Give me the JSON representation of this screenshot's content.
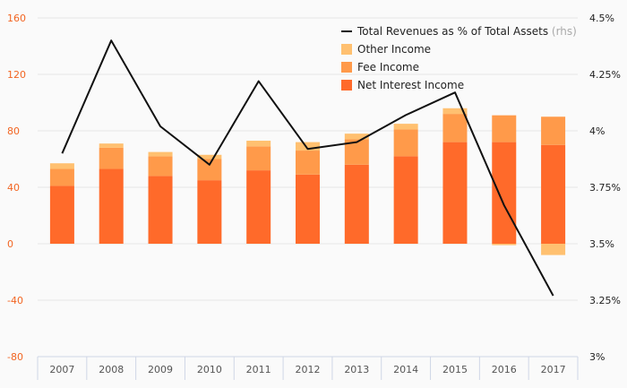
{
  "colors": {
    "net_interest": "#ff6a2a",
    "fee": "#ff9a4a",
    "other": "#ffc070",
    "line": "#111111",
    "left_axis": "#f26522",
    "grid": "#e6e6e6"
  },
  "chart_data": {
    "type": "bar",
    "stacked": true,
    "categories": [
      "2007",
      "2008",
      "2009",
      "2010",
      "2011",
      "2012",
      "2013",
      "2014",
      "2015",
      "2016",
      "2017"
    ],
    "series": [
      {
        "name": "Net Interest Income",
        "axis": "left",
        "values": [
          41,
          53,
          48,
          45,
          52,
          49,
          56,
          62,
          72,
          72,
          70
        ]
      },
      {
        "name": "Fee Income",
        "axis": "left",
        "values": [
          12,
          15,
          14,
          15,
          17,
          17,
          18,
          19,
          20,
          19,
          20
        ]
      },
      {
        "name": "Other Income",
        "axis": "left",
        "values": [
          4,
          3,
          3,
          3,
          4,
          6,
          4,
          4,
          4,
          -1,
          -8
        ]
      },
      {
        "name": "Total Revenues as % of Total Assets",
        "type": "line",
        "axis": "right",
        "values": [
          3.9,
          4.4,
          4.02,
          3.85,
          4.22,
          3.92,
          3.95,
          4.07,
          4.17,
          3.67,
          3.27
        ]
      }
    ],
    "legend_rhs_suffix": "(rhs)",
    "ylim_left": [
      -80,
      160
    ],
    "yticks_left": [
      "-80",
      "-40",
      "0",
      "40",
      "80",
      "120",
      "160"
    ],
    "ylim_right": [
      3.0,
      4.5
    ],
    "yticks_right": [
      "3%",
      "3.25%",
      "3.5%",
      "3.75%",
      "4%",
      "4.25%",
      "4.5%"
    ],
    "grid": true,
    "legend_position": "top-right"
  }
}
